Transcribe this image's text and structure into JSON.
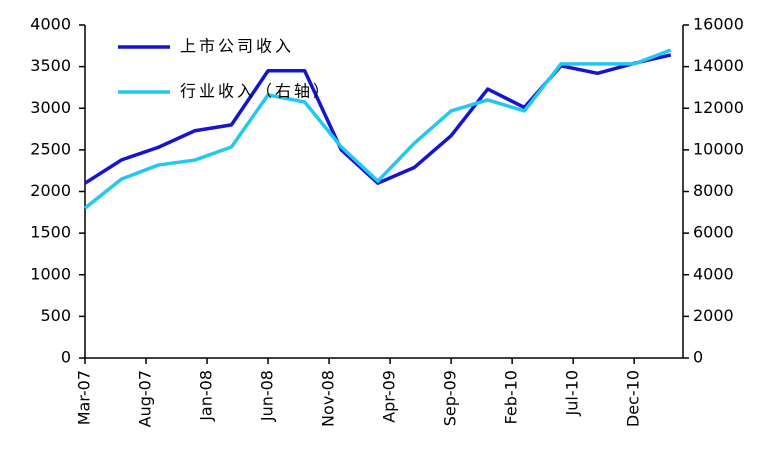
{
  "chart_data": {
    "type": "line",
    "x": [
      0,
      3,
      6,
      9,
      12,
      15,
      18,
      21,
      24,
      27,
      30,
      33,
      36,
      39,
      42,
      45,
      48
    ],
    "series": [
      {
        "name": "上市公司收入",
        "color": "#1414d2",
        "values": [
          2100,
          2380,
          2530,
          2730,
          2800,
          3450,
          3450,
          2500,
          2100,
          2290,
          2670,
          3230,
          3010,
          3510,
          3420,
          3540,
          3640
        ]
      },
      {
        "name": "行业收入（右轴）",
        "color": "#22c8f0",
        "axis": "y2",
        "values": [
          7200,
          8600,
          9270,
          9510,
          10140,
          12640,
          12300,
          10140,
          8500,
          10330,
          11870,
          12400,
          11870,
          14130,
          14130,
          14130,
          14800
        ]
      }
    ],
    "xlim": [
      0,
      49
    ],
    "xticks": [
      {
        "value": 0,
        "label": "Mar-07"
      },
      {
        "value": 5,
        "label": "Aug-07"
      },
      {
        "value": 10,
        "label": "Jan-08"
      },
      {
        "value": 15,
        "label": "Jun-08"
      },
      {
        "value": 20,
        "label": "Nov-08"
      },
      {
        "value": 25,
        "label": "Apr-09"
      },
      {
        "value": 30,
        "label": "Sep-09"
      },
      {
        "value": 35,
        "label": "Feb-10"
      },
      {
        "value": 40,
        "label": "Jul-10"
      },
      {
        "value": 45,
        "label": "Dec-10"
      }
    ],
    "ylim": [
      0,
      4000
    ],
    "yticks": [
      0,
      500,
      1000,
      1500,
      2000,
      2500,
      3000,
      3500,
      4000
    ],
    "y2lim": [
      0,
      16000
    ],
    "y2ticks": [
      0,
      2000,
      4000,
      6000,
      8000,
      10000,
      12000,
      14000,
      16000
    ],
    "legend": "upper left"
  }
}
